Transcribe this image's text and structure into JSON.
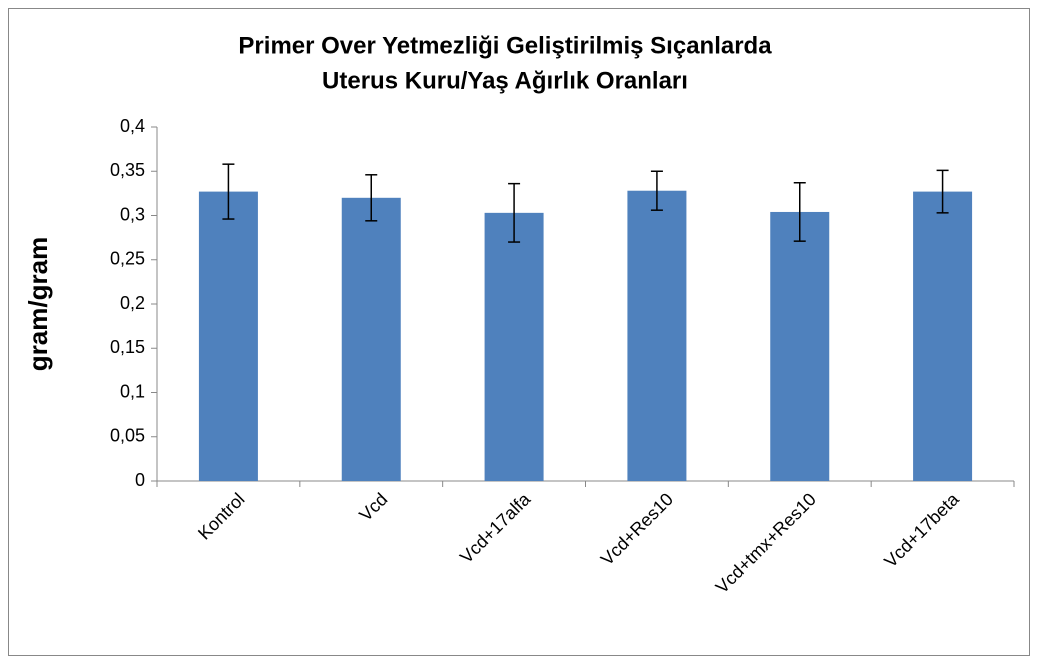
{
  "chart_data": {
    "type": "bar",
    "title": [
      "Primer Over Yetmezliği Geliştirilmiş Sıçanlarda",
      "Uterus Kuru/Yaş Ağırlık Oranları"
    ],
    "y_label": "gram/gram",
    "categories": [
      "Kontrol",
      "Vcd",
      "Vcd+17alfa",
      "Vcd+Res10",
      "Vcd+tmx+Res10",
      "Vcd+17beta"
    ],
    "values": [
      0.327,
      0.32,
      0.303,
      0.328,
      0.304,
      0.327
    ],
    "errors": [
      0.031,
      0.026,
      0.033,
      0.022,
      0.033,
      0.024
    ],
    "color": "#4f81bd",
    "ylim": [
      0,
      0.4
    ],
    "yticks": [
      0,
      {
        "value": 0.05,
        "label": "0,05"
      },
      {
        "value": 0.1,
        "label": "0,1"
      },
      {
        "value": 0.15,
        "label": "0,15"
      },
      {
        "value": 0.2,
        "label": "0,2"
      },
      {
        "value": 0.25,
        "label": "0,25"
      },
      {
        "value": 0.3,
        "label": "0,3"
      },
      {
        "value": 0.35,
        "label": "0,35"
      },
      {
        "value": 0.4,
        "label": "0,4"
      }
    ],
    "grid": false
  }
}
